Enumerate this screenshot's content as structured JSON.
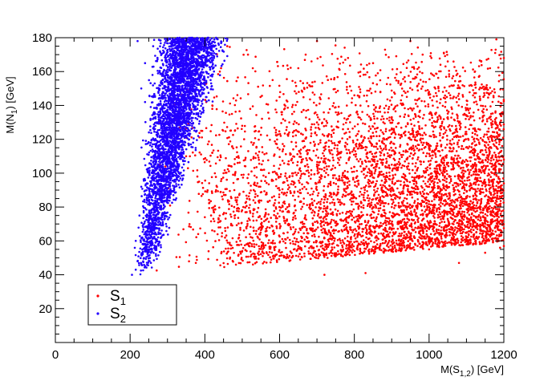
{
  "chart_data": {
    "type": "scatter",
    "xlabel": {
      "base": "M(S",
      "sub": "1,2",
      "tail": ") [GeV]"
    },
    "ylabel": {
      "base": "M(N",
      "sub": "1",
      "tail": ") [GeV]"
    },
    "xlim": [
      0,
      1200
    ],
    "ylim": [
      0,
      180
    ],
    "x_ticks": [
      0,
      200,
      400,
      600,
      800,
      1000,
      1200
    ],
    "y_ticks": [
      20,
      40,
      60,
      80,
      100,
      120,
      140,
      160,
      180
    ],
    "x_tick_labels": [
      "0",
      "200",
      "400",
      "600",
      "800",
      "1000",
      "1200"
    ],
    "y_tick_labels": [
      "20",
      "40",
      "60",
      "80",
      "100",
      "120",
      "140",
      "160",
      "180"
    ],
    "grid": false,
    "legend": {
      "placement": "bottom-left"
    },
    "series": [
      {
        "name": {
          "base": "S",
          "sub": "1"
        },
        "color": "#ff0000",
        "description_points": [
          [
            720,
            40
          ],
          [
            830,
            41
          ],
          [
            1080,
            47
          ],
          [
            1190,
            56
          ],
          [
            1150,
            53
          ],
          [
            1000,
            55
          ],
          [
            900,
            55
          ],
          [
            840,
            55
          ],
          [
            690,
            56
          ],
          [
            1200,
            57
          ],
          [
            1160,
            60
          ],
          [
            1100,
            62
          ],
          [
            950,
            62
          ],
          [
            800,
            63
          ],
          [
            660,
            62
          ],
          [
            520,
            64
          ],
          [
            1000,
            67
          ],
          [
            940,
            68
          ],
          [
            790,
            68
          ],
          [
            600,
            70
          ],
          [
            1190,
            70
          ],
          [
            1120,
            72
          ],
          [
            1050,
            73
          ],
          [
            860,
            74
          ],
          [
            730,
            76
          ],
          [
            540,
            77
          ],
          [
            400,
            74
          ],
          [
            1170,
            78
          ],
          [
            1000,
            80
          ],
          [
            900,
            80
          ],
          [
            700,
            82
          ],
          [
            530,
            84
          ],
          [
            470,
            86
          ],
          [
            430,
            90
          ],
          [
            600,
            90
          ],
          [
            780,
            91
          ],
          [
            1000,
            92
          ],
          [
            1200,
            94
          ],
          [
            380,
            98
          ],
          [
            450,
            100
          ],
          [
            550,
            102
          ],
          [
            700,
            104
          ],
          [
            900,
            105
          ],
          [
            1100,
            105
          ],
          [
            1200,
            108
          ],
          [
            350,
            110
          ],
          [
            420,
            112
          ],
          [
            600,
            114
          ],
          [
            820,
            116
          ],
          [
            1000,
            115
          ],
          [
            1180,
            118
          ],
          [
            390,
            125
          ],
          [
            500,
            128
          ],
          [
            700,
            130
          ],
          [
            900,
            132
          ],
          [
            1050,
            133
          ],
          [
            1190,
            130
          ],
          [
            420,
            140
          ],
          [
            600,
            145
          ],
          [
            800,
            146
          ],
          [
            1000,
            148
          ],
          [
            1150,
            150
          ],
          [
            440,
            160
          ],
          [
            650,
            162
          ],
          [
            850,
            165
          ],
          [
            1050,
            166
          ],
          [
            1200,
            168
          ],
          [
            460,
            175
          ],
          [
            700,
            178
          ],
          [
            950,
            178
          ],
          [
            1180,
            179
          ]
        ]
      },
      {
        "name": {
          "base": "S",
          "sub": "2"
        },
        "color": "#2200ff",
        "description_points": [
          [
            205,
            40
          ],
          [
            215,
            43
          ],
          [
            220,
            48
          ],
          [
            230,
            52
          ],
          [
            240,
            55
          ],
          [
            215,
            60
          ],
          [
            250,
            62
          ],
          [
            235,
            68
          ],
          [
            260,
            72
          ],
          [
            225,
            75
          ],
          [
            270,
            80
          ],
          [
            245,
            85
          ],
          [
            285,
            88
          ],
          [
            230,
            92
          ],
          [
            300,
            95
          ],
          [
            260,
            100
          ],
          [
            320,
            102
          ],
          [
            280,
            108
          ],
          [
            340,
            112
          ],
          [
            250,
            118
          ],
          [
            300,
            120
          ],
          [
            350,
            125
          ],
          [
            270,
            130
          ],
          [
            330,
            135
          ],
          [
            380,
            138
          ],
          [
            240,
            142
          ],
          [
            300,
            146
          ],
          [
            360,
            150
          ],
          [
            400,
            152
          ],
          [
            260,
            158
          ],
          [
            320,
            162
          ],
          [
            380,
            166
          ],
          [
            420,
            168
          ],
          [
            280,
            172
          ],
          [
            340,
            175
          ],
          [
            400,
            178
          ],
          [
            430,
            180
          ],
          [
            220,
            178
          ],
          [
            240,
            165
          ],
          [
            230,
            150
          ]
        ]
      }
    ]
  },
  "legend": {
    "s1_base": "S",
    "s1_sub": "1",
    "s2_base": "S",
    "s2_sub": "2"
  }
}
